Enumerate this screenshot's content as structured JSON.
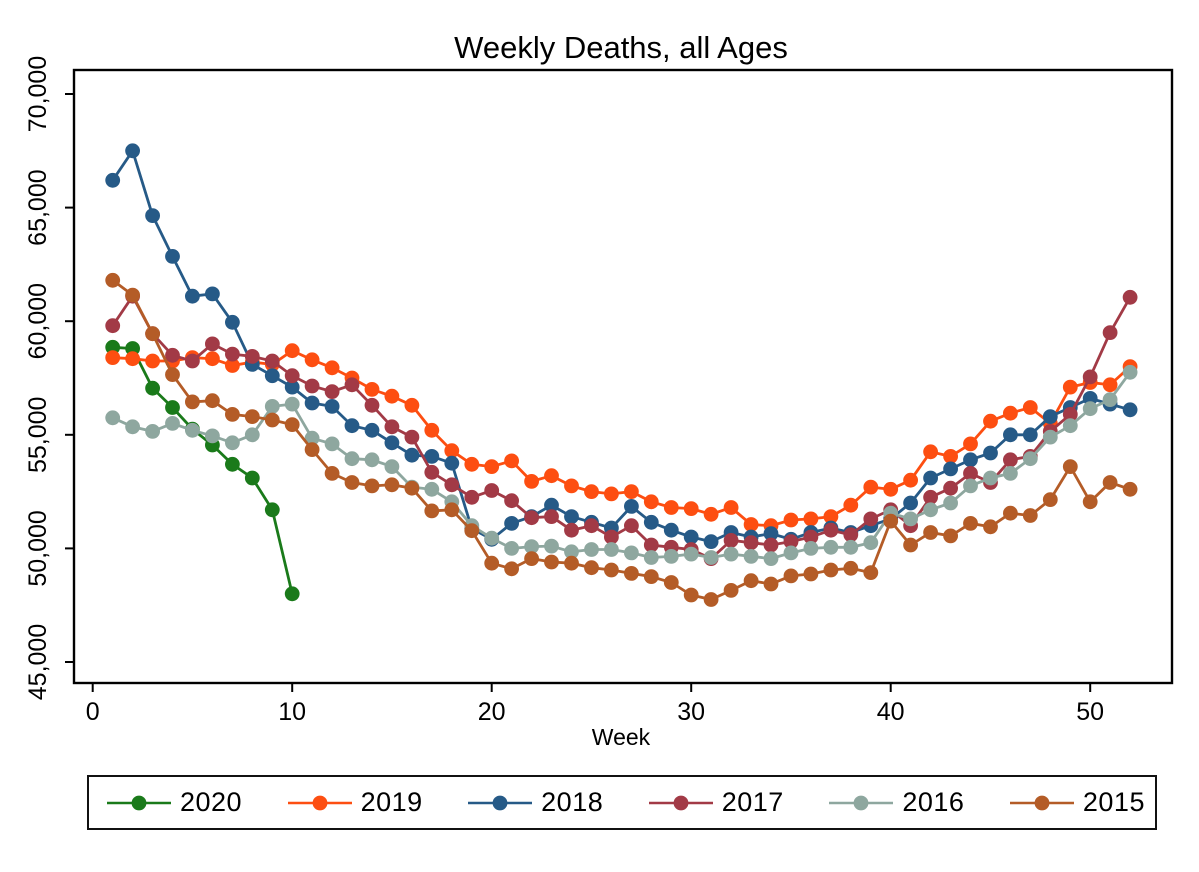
{
  "chart_data": {
    "type": "line",
    "title": "Weekly Deaths, all Ages",
    "xlabel": "Week",
    "ylabel": "",
    "grid": false,
    "legend_position": "bottom",
    "x_axis": {
      "ticks": [
        0,
        10,
        20,
        30,
        40,
        50
      ],
      "min": -0.94,
      "max": 54.1
    },
    "y_axis": {
      "ticks": [
        45000,
        50000,
        55000,
        60000,
        65000,
        70000
      ],
      "tick_labels": [
        "45,000",
        "50,000",
        "55,000",
        "60,000",
        "65,000",
        "70,000"
      ],
      "min": 44080,
      "max": 71060
    },
    "x": "weeks 1-52",
    "series": [
      {
        "name": "2020",
        "color": "#1a7a1a",
        "values": [
          58850,
          58800,
          57050,
          56200,
          55250,
          54550,
          53700,
          53100,
          51700,
          48000
        ]
      },
      {
        "name": "2019",
        "color": "#fd4e11",
        "values": [
          58400,
          58350,
          58250,
          58250,
          58400,
          58350,
          58050,
          58200,
          58100,
          58700,
          58300,
          57950,
          57500,
          57000,
          56700,
          56300,
          55200,
          54300,
          53700,
          53600,
          53850,
          52950,
          53200,
          52750,
          52500,
          52400,
          52500,
          52050,
          51800,
          51750,
          51500,
          51800,
          51050,
          51000,
          51250,
          51300,
          51400,
          51900,
          52700,
          52600,
          53000,
          54250,
          54050,
          54600,
          55600,
          55950,
          56200,
          55500,
          57100,
          57300,
          57200,
          58000
        ]
      },
      {
        "name": "2018",
        "color": "#265a87",
        "values": [
          66200,
          67500,
          64650,
          62850,
          61100,
          61200,
          59950,
          58100,
          57600,
          57100,
          56400,
          56250,
          55400,
          55200,
          54650,
          54100,
          54050,
          53750,
          50870,
          50400,
          51100,
          51400,
          51900,
          51400,
          51150,
          50900,
          51850,
          51150,
          50800,
          50500,
          50300,
          50700,
          50500,
          50650,
          50400,
          50700,
          50900,
          50700,
          51000,
          51300,
          52000,
          53100,
          53500,
          53900,
          54200,
          55000,
          55000,
          55800,
          56200,
          56600,
          56350,
          56100
        ]
      },
      {
        "name": "2017",
        "color": "#a23a46",
        "values": [
          59800,
          61100,
          59450,
          58500,
          58250,
          59000,
          58550,
          58450,
          58250,
          57600,
          57150,
          56900,
          57200,
          56300,
          55350,
          54900,
          53350,
          52800,
          52250,
          52550,
          52100,
          51350,
          51400,
          50800,
          51000,
          50500,
          51000,
          50150,
          50050,
          49950,
          49550,
          50350,
          50250,
          50150,
          50300,
          50500,
          50800,
          50600,
          51300,
          51700,
          51000,
          52250,
          52650,
          53300,
          52900,
          53900,
          54050,
          55150,
          55900,
          57550,
          59500,
          61050
        ]
      },
      {
        "name": "2016",
        "color": "#8ea79f",
        "values": [
          55750,
          55350,
          55150,
          55500,
          55200,
          54950,
          54650,
          55000,
          56250,
          56350,
          54850,
          54600,
          53950,
          53900,
          53600,
          52700,
          52600,
          52050,
          51000,
          50450,
          50000,
          50080,
          50100,
          49850,
          49950,
          49950,
          49800,
          49600,
          49650,
          49750,
          49600,
          49750,
          49650,
          49550,
          49800,
          50000,
          50050,
          50050,
          50250,
          51550,
          51300,
          51700,
          52000,
          52750,
          53100,
          53300,
          53950,
          54900,
          55400,
          56150,
          56550,
          57750
        ]
      },
      {
        "name": "2015",
        "color": "#b45c27",
        "values": [
          61800,
          61150,
          59450,
          57650,
          56450,
          56500,
          55900,
          55800,
          55650,
          55450,
          54350,
          53300,
          52900,
          52750,
          52800,
          52650,
          51650,
          51700,
          50780,
          49350,
          49100,
          49550,
          49400,
          49350,
          49150,
          49050,
          48900,
          48760,
          48500,
          47950,
          47750,
          48150,
          48580,
          48435,
          48790,
          48875,
          49050,
          49125,
          48935,
          51200,
          50150,
          50700,
          50550,
          51100,
          50950,
          51550,
          51450,
          52150,
          53600,
          52050,
          52900,
          52600
        ]
      }
    ],
    "legend": {
      "items": [
        "2020",
        "2019",
        "2018",
        "2017",
        "2016",
        "2015"
      ]
    }
  }
}
